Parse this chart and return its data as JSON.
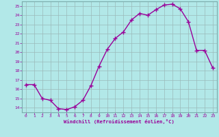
{
  "x": [
    0,
    1,
    2,
    3,
    4,
    5,
    6,
    7,
    8,
    9,
    10,
    11,
    12,
    13,
    14,
    15,
    16,
    17,
    18,
    19,
    20,
    21,
    22,
    23
  ],
  "y": [
    16.5,
    16.5,
    15.0,
    14.8,
    13.9,
    13.8,
    14.1,
    14.8,
    16.4,
    18.5,
    20.3,
    21.5,
    22.2,
    23.5,
    24.2,
    24.0,
    24.6,
    25.1,
    25.2,
    24.7,
    23.3,
    20.2,
    20.2,
    18.3
  ],
  "color": "#990099",
  "bg_color": "#b2e8e8",
  "grid_color": "#9bbaba",
  "border_color": "#7aacac",
  "xlabel": "Windchill (Refroidissement éolien,°C)",
  "xlabel_color": "#990099",
  "tick_color": "#990099",
  "ylim": [
    13.5,
    25.5
  ],
  "yticks": [
    14,
    15,
    16,
    17,
    18,
    19,
    20,
    21,
    22,
    23,
    24,
    25
  ],
  "xlim": [
    -0.5,
    23.5
  ],
  "xticks": [
    0,
    1,
    2,
    3,
    4,
    5,
    6,
    7,
    8,
    9,
    10,
    11,
    12,
    13,
    14,
    15,
    16,
    17,
    18,
    19,
    20,
    21,
    22,
    23
  ],
  "marker": "+",
  "markersize": 4,
  "markeredgewidth": 1.0,
  "linewidth": 1.0
}
